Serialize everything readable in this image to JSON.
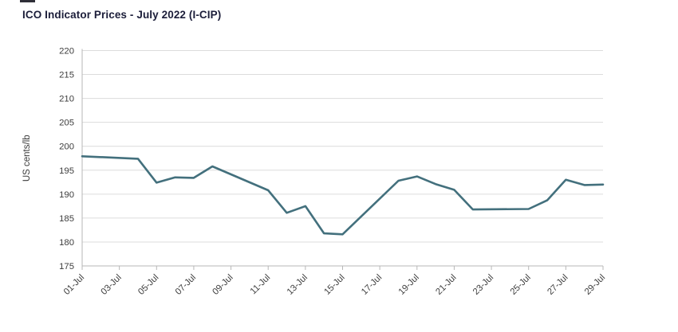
{
  "title": "ICO Indicator Prices - July 2022 (I-CIP)",
  "chart_data": {
    "type": "line",
    "title": "ICO Indicator Prices - July 2022 (I-CIP)",
    "xlabel": "",
    "ylabel": "US cents/lb",
    "ylim": [
      175,
      220
    ],
    "ytick_step": 5,
    "y_tick_labels": [
      "220",
      "215",
      "210",
      "205",
      "200",
      "195",
      "190",
      "185",
      "180",
      "175"
    ],
    "x_range_days": [
      1,
      29
    ],
    "x_tick_days": [
      1,
      3,
      5,
      7,
      9,
      11,
      13,
      15,
      17,
      19,
      21,
      23,
      25,
      27,
      29
    ],
    "x_tick_labels": [
      "01-Jul",
      "03-Jul",
      "05-Jul",
      "07-Jul",
      "09-Jul",
      "11-Jul",
      "13-Jul",
      "15-Jul",
      "17-Jul",
      "19-Jul",
      "21-Jul",
      "23-Jul",
      "25-Jul",
      "27-Jul",
      "29-Jul"
    ],
    "grid": "horizontal",
    "legend_position": "none",
    "colors": {
      "line": "#43707d",
      "gridline": "#dcdcdc",
      "axis": "#b7b7b7",
      "tick_label": "#3d3d3d",
      "title": "#1c1e3a",
      "background": "#ffffff"
    },
    "series": [
      {
        "name": "I-CIP",
        "points": [
          {
            "date": "01-Jul",
            "day": 1,
            "value": 197.9
          },
          {
            "date": "04-Jul",
            "day": 4,
            "value": 197.4
          },
          {
            "date": "05-Jul",
            "day": 5,
            "value": 192.4
          },
          {
            "date": "06-Jul",
            "day": 6,
            "value": 193.5
          },
          {
            "date": "07-Jul",
            "day": 7,
            "value": 193.4
          },
          {
            "date": "08-Jul",
            "day": 8,
            "value": 195.8
          },
          {
            "date": "11-Jul",
            "day": 11,
            "value": 190.8
          },
          {
            "date": "12-Jul",
            "day": 12,
            "value": 186.1
          },
          {
            "date": "13-Jul",
            "day": 13,
            "value": 187.5
          },
          {
            "date": "14-Jul",
            "day": 14,
            "value": 181.8
          },
          {
            "date": "15-Jul",
            "day": 15,
            "value": 181.6
          },
          {
            "date": "18-Jul",
            "day": 18,
            "value": 192.8
          },
          {
            "date": "19-Jul",
            "day": 19,
            "value": 193.7
          },
          {
            "date": "20-Jul",
            "day": 20,
            "value": 192.1
          },
          {
            "date": "21-Jul",
            "day": 21,
            "value": 190.9
          },
          {
            "date": "22-Jul",
            "day": 22,
            "value": 186.8
          },
          {
            "date": "25-Jul",
            "day": 25,
            "value": 186.9
          },
          {
            "date": "26-Jul",
            "day": 26,
            "value": 188.7
          },
          {
            "date": "27-Jul",
            "day": 27,
            "value": 193.0
          },
          {
            "date": "28-Jul",
            "day": 28,
            "value": 191.9
          },
          {
            "date": "29-Jul",
            "day": 29,
            "value": 192.0
          }
        ]
      }
    ]
  }
}
